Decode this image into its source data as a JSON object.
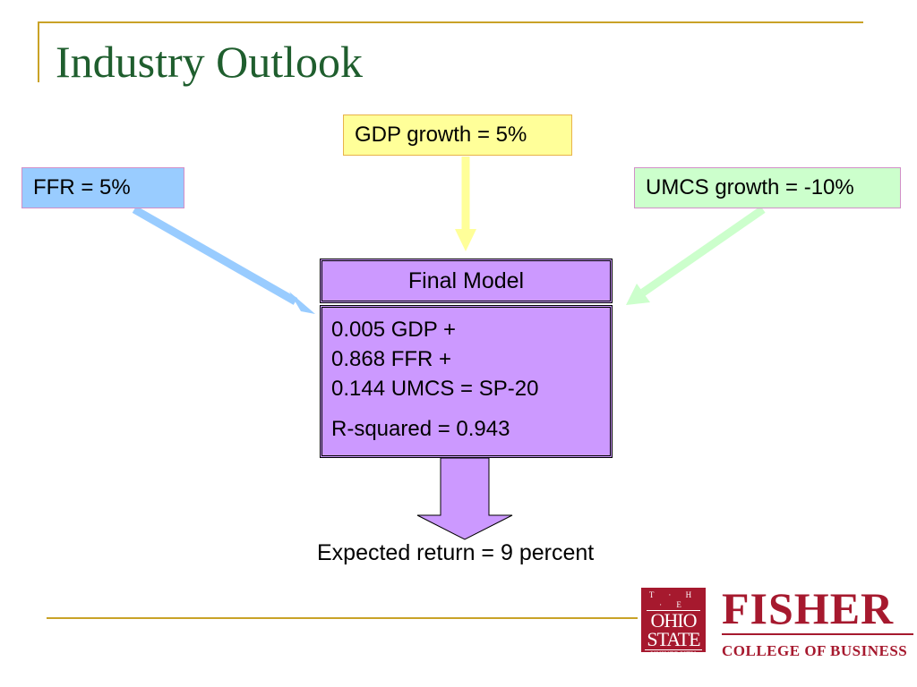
{
  "slide": {
    "title": "Industry Outlook"
  },
  "inputs": {
    "gdp": "GDP growth = 5%",
    "ffr": "FFR = 5%",
    "umcs": "UMCS growth = -10%"
  },
  "model": {
    "header": "Final Model",
    "equation_lines": [
      "0.005 GDP +",
      "0.868 FFR +",
      "0.144 UMCS = SP-20"
    ],
    "r_squared": "R-squared = 0.943"
  },
  "result": "Expected return = 9 percent",
  "logos": {
    "osu": {
      "the": "T · H · E",
      "line1": "OHIO",
      "line2": "STATE",
      "line3": "UNIVERSITY"
    },
    "fisher": {
      "name": "FISHER",
      "sub": "COLLEGE OF BUSINESS"
    }
  },
  "colors": {
    "title": "#1f5e2e",
    "accent_line": "#c9a227",
    "gdp_fill": "#ffff99",
    "ffr_fill": "#99ccff",
    "umcs_fill": "#ccffcc",
    "model_fill": "#cc99ff",
    "brand_red": "#a6192e"
  }
}
